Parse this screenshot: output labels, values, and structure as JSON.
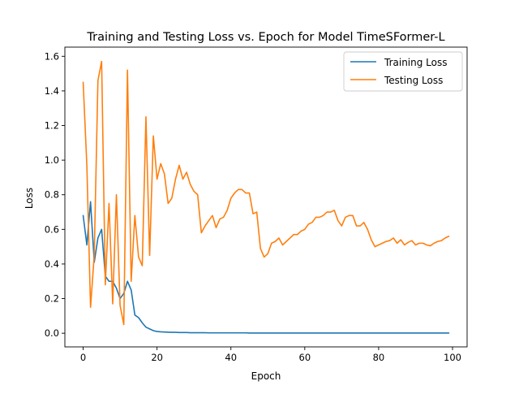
{
  "chart_data": {
    "type": "line",
    "title": "Training and Testing Loss vs. Epoch for Model TimeSFormer-L",
    "xlabel": "Epoch",
    "ylabel": "Loss",
    "xlim": [
      -4.95,
      103.95
    ],
    "ylim": [
      -0.079,
      1.653
    ],
    "x_ticks": [
      0,
      20,
      40,
      60,
      80,
      100
    ],
    "x_tick_labels": [
      "0",
      "20",
      "40",
      "60",
      "80",
      "100"
    ],
    "y_ticks": [
      0.0,
      0.2,
      0.4,
      0.6,
      0.8,
      1.0,
      1.2,
      1.4,
      1.6
    ],
    "y_tick_labels": [
      "0.0",
      "0.2",
      "0.4",
      "0.6",
      "0.8",
      "1.0",
      "1.2",
      "1.4",
      "1.6"
    ],
    "grid": false,
    "legend_position": "top-right",
    "series": [
      {
        "name": "Training Loss",
        "color": "#1f77b4",
        "x": [
          0,
          1,
          2,
          3,
          4,
          5,
          6,
          7,
          8,
          9,
          10,
          11,
          12,
          13,
          14,
          15,
          16,
          17,
          18,
          19,
          20,
          21,
          22,
          23,
          24,
          25,
          26,
          27,
          28,
          29,
          30,
          31,
          32,
          33,
          34,
          35,
          36,
          37,
          38,
          39,
          40,
          41,
          42,
          43,
          44,
          45,
          46,
          47,
          48,
          49,
          50,
          51,
          52,
          53,
          54,
          55,
          56,
          57,
          58,
          59,
          60,
          61,
          62,
          63,
          64,
          65,
          66,
          67,
          68,
          69,
          70,
          71,
          72,
          73,
          74,
          75,
          76,
          77,
          78,
          79,
          80,
          81,
          82,
          83,
          84,
          85,
          86,
          87,
          88,
          89,
          90,
          91,
          92,
          93,
          94,
          95,
          96,
          97,
          98,
          99
        ],
        "values": [
          0.68,
          0.51,
          0.76,
          0.41,
          0.55,
          0.6,
          0.33,
          0.3,
          0.3,
          0.26,
          0.2,
          0.23,
          0.3,
          0.25,
          0.105,
          0.09,
          0.06,
          0.035,
          0.025,
          0.015,
          0.01,
          0.008,
          0.007,
          0.006,
          0.005,
          0.005,
          0.004,
          0.004,
          0.004,
          0.003,
          0.003,
          0.003,
          0.003,
          0.003,
          0.002,
          0.002,
          0.002,
          0.002,
          0.002,
          0.002,
          0.002,
          0.002,
          0.002,
          0.002,
          0.002,
          0.001,
          0.001,
          0.001,
          0.001,
          0.001,
          0.001,
          0.001,
          0.001,
          0.001,
          0.001,
          0.001,
          0.001,
          0.001,
          0.001,
          0.001,
          0.001,
          0.001,
          0.001,
          0.001,
          0.001,
          0.001,
          0.001,
          0.001,
          0.001,
          0.001,
          0.001,
          0.001,
          0.001,
          0.001,
          0.001,
          0.001,
          0.001,
          0.001,
          0.001,
          0.001,
          0.001,
          0.001,
          0.001,
          0.001,
          0.001,
          0.001,
          0.001,
          0.001,
          0.001,
          0.001,
          0.001,
          0.001,
          0.001,
          0.001,
          0.001,
          0.001,
          0.001,
          0.001,
          0.001,
          0.001
        ]
      },
      {
        "name": "Testing Loss",
        "color": "#ff7f0e",
        "x": [
          0,
          1,
          2,
          3,
          4,
          5,
          6,
          7,
          8,
          9,
          10,
          11,
          12,
          13,
          14,
          15,
          16,
          17,
          18,
          19,
          20,
          21,
          22,
          23,
          24,
          25,
          26,
          27,
          28,
          29,
          30,
          31,
          32,
          33,
          34,
          35,
          36,
          37,
          38,
          39,
          40,
          41,
          42,
          43,
          44,
          45,
          46,
          47,
          48,
          49,
          50,
          51,
          52,
          53,
          54,
          55,
          56,
          57,
          58,
          59,
          60,
          61,
          62,
          63,
          64,
          65,
          66,
          67,
          68,
          69,
          70,
          71,
          72,
          73,
          74,
          75,
          76,
          77,
          78,
          79,
          80,
          81,
          82,
          83,
          84,
          85,
          86,
          87,
          88,
          89,
          90,
          91,
          92,
          93,
          94,
          95,
          96,
          97,
          98,
          99
        ],
        "values": [
          1.45,
          0.97,
          0.15,
          0.45,
          1.46,
          1.57,
          0.28,
          0.75,
          0.17,
          0.8,
          0.16,
          0.05,
          1.52,
          0.3,
          0.68,
          0.44,
          0.39,
          1.25,
          0.45,
          1.14,
          0.89,
          0.98,
          0.92,
          0.75,
          0.78,
          0.89,
          0.97,
          0.89,
          0.93,
          0.86,
          0.82,
          0.8,
          0.58,
          0.62,
          0.65,
          0.68,
          0.61,
          0.66,
          0.67,
          0.71,
          0.78,
          0.81,
          0.83,
          0.83,
          0.81,
          0.81,
          0.69,
          0.7,
          0.49,
          0.44,
          0.46,
          0.52,
          0.53,
          0.55,
          0.51,
          0.53,
          0.55,
          0.57,
          0.57,
          0.59,
          0.6,
          0.63,
          0.64,
          0.67,
          0.67,
          0.68,
          0.7,
          0.7,
          0.71,
          0.65,
          0.62,
          0.67,
          0.68,
          0.68,
          0.62,
          0.62,
          0.64,
          0.6,
          0.54,
          0.5,
          0.51,
          0.52,
          0.53,
          0.535,
          0.55,
          0.52,
          0.54,
          0.51,
          0.525,
          0.535,
          0.51,
          0.52,
          0.52,
          0.51,
          0.505,
          0.52,
          0.53,
          0.535,
          0.55,
          0.56
        ]
      }
    ]
  }
}
